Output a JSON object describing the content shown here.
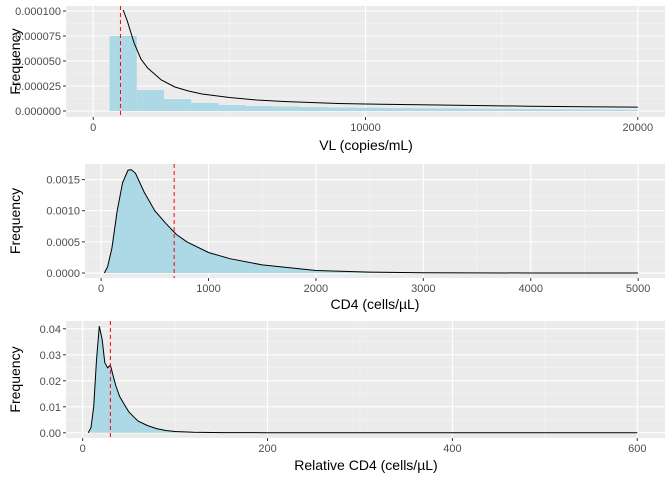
{
  "style": {
    "panel_bg": "#EBEBEB",
    "grid_major": "#FFFFFF",
    "grid_minor": "#F5F5F5",
    "fill": "#ADD8E6",
    "line": "#000000",
    "vline": "#FF0000",
    "tick_color": "#4D4D4D"
  },
  "chart_data": [
    {
      "type": "area",
      "subtype": "histogram + density",
      "xlabel": "VL (copies/mL)",
      "ylabel": "Frequency",
      "xlim": [
        -1000,
        21000
      ],
      "ylim": [
        -6e-06,
        0.000105
      ],
      "x_ticks": [
        0,
        10000,
        20000
      ],
      "x_tick_labels": [
        "0",
        "10000",
        "20000"
      ],
      "y_ticks": [
        0,
        2.5e-05,
        5e-05,
        7.5e-05,
        0.0001
      ],
      "y_tick_labels": [
        "0.000000",
        "0.000025",
        "0.000050",
        "0.000075",
        "0.000100"
      ],
      "grid": true,
      "histogram": {
        "bins": [
          [
            600,
            1600
          ],
          [
            1600,
            2600
          ],
          [
            2600,
            3600
          ],
          [
            3600,
            4600
          ],
          [
            4600,
            5600
          ],
          [
            5600,
            6600
          ],
          [
            6600,
            7600
          ],
          [
            7600,
            8600
          ],
          [
            8600,
            9600
          ],
          [
            9600,
            10600
          ],
          [
            10600,
            11600
          ],
          [
            11600,
            12600
          ],
          [
            12600,
            13600
          ],
          [
            13600,
            14600
          ],
          [
            14600,
            15600
          ],
          [
            15600,
            16600
          ],
          [
            16600,
            17600
          ],
          [
            17600,
            18600
          ],
          [
            18600,
            19600
          ],
          [
            19600,
            20000
          ]
        ],
        "values": [
          7.5e-05,
          2.1e-05,
          1.2e-05,
          8e-06,
          6e-06,
          5e-06,
          4.5e-06,
          4e-06,
          3.5e-06,
          3.2e-06,
          3e-06,
          2.8e-06,
          2.6e-06,
          2.4e-06,
          2.2e-06,
          2e-06,
          1.8e-06,
          1.6e-06,
          1.4e-06,
          1.2e-06
        ]
      },
      "density": {
        "x": [
          1100,
          1250,
          1500,
          1750,
          2000,
          2500,
          3000,
          3500,
          4000,
          5000,
          6000,
          7000,
          8000,
          9000,
          10000,
          12000,
          14000,
          16000,
          18000,
          20000
        ],
        "y": [
          0.000101,
          9e-05,
          6.8e-05,
          5.2e-05,
          4.3e-05,
          3.1e-05,
          2.4e-05,
          2e-05,
          1.7e-05,
          1.35e-05,
          1.1e-05,
          9.5e-06,
          8.5e-06,
          7.5e-06,
          7e-06,
          6.2e-06,
          5.5e-06,
          4.8e-06,
          4.2e-06,
          3.8e-06
        ]
      },
      "vline": 1000
    },
    {
      "type": "area",
      "subtype": "density",
      "xlabel": "CD4 (cells/µL)",
      "ylabel": "Frequency",
      "xlim": [
        -150,
        5250
      ],
      "ylim": [
        -8e-05,
        0.00175
      ],
      "x_ticks": [
        0,
        1000,
        2000,
        3000,
        4000,
        5000
      ],
      "x_tick_labels": [
        "0",
        "1000",
        "2000",
        "3000",
        "4000",
        "5000"
      ],
      "y_ticks": [
        0,
        0.0005,
        0.001,
        0.0015
      ],
      "y_tick_labels": [
        "0.0000",
        "0.0005",
        "0.0010",
        "0.0015"
      ],
      "grid": true,
      "density": {
        "x": [
          30,
          60,
          100,
          150,
          200,
          250,
          280,
          320,
          400,
          500,
          600,
          700,
          800,
          1000,
          1200,
          1500,
          2000,
          2500,
          3000,
          4000,
          5000
        ],
        "y": [
          0.0,
          0.0001,
          0.0004,
          0.001,
          0.00145,
          0.00165,
          0.00166,
          0.0016,
          0.0013,
          0.001,
          0.0008,
          0.00062,
          0.0005,
          0.00033,
          0.00023,
          0.00013,
          4e-05,
          1.5e-05,
          5e-06,
          1e-06,
          0.0
        ]
      },
      "vline": 680
    },
    {
      "type": "area",
      "subtype": "density",
      "xlabel": "Relative CD4 (cells/µL)",
      "ylabel": "Frequency",
      "xlim": [
        -18,
        630
      ],
      "ylim": [
        -0.002,
        0.043
      ],
      "x_ticks": [
        0,
        200,
        400,
        600
      ],
      "x_tick_labels": [
        "0",
        "200",
        "400",
        "600"
      ],
      "y_ticks": [
        0,
        0.01,
        0.02,
        0.03,
        0.04
      ],
      "y_tick_labels": [
        "0.00",
        "0.01",
        "0.02",
        "0.03",
        "0.04"
      ],
      "grid": true,
      "density": {
        "x": [
          6,
          9,
          12,
          15,
          18,
          21,
          24,
          27,
          30,
          33,
          36,
          40,
          45,
          50,
          55,
          60,
          70,
          80,
          90,
          100,
          120,
          150,
          200,
          300,
          400,
          600
        ],
        "y": [
          0.0,
          0.002,
          0.01,
          0.028,
          0.041,
          0.036,
          0.027,
          0.025,
          0.026,
          0.022,
          0.018,
          0.014,
          0.011,
          0.008,
          0.0062,
          0.0045,
          0.0028,
          0.0016,
          0.0009,
          0.0005,
          0.0002,
          8e-05,
          3e-05,
          1e-05,
          0.0,
          0.0
        ]
      },
      "vline": 30
    }
  ]
}
